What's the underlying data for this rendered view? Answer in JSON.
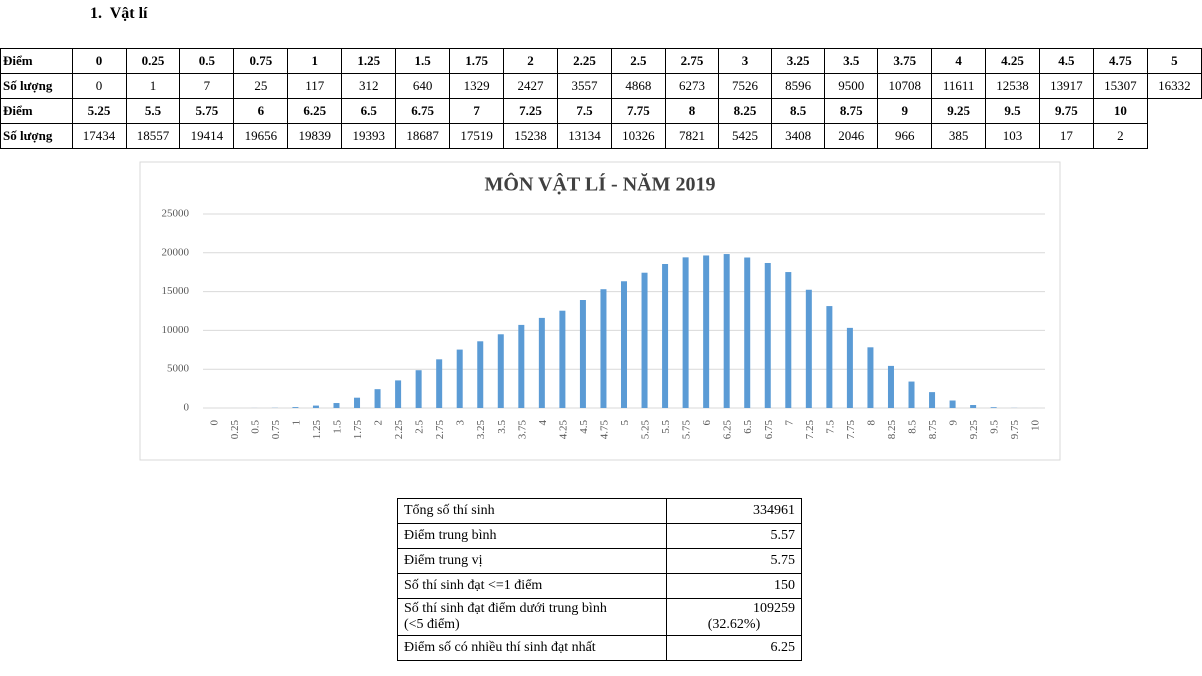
{
  "heading": "1.  Vật lí",
  "score_table": {
    "row_labels": [
      "Điểm",
      "Số lượng"
    ]
  },
  "chart_data": {
    "type": "bar",
    "title": "MÔN VẬT LÍ - NĂM 2019",
    "categories": [
      "0",
      "0.25",
      "0.5",
      "0.75",
      "1",
      "1.25",
      "1.5",
      "1.75",
      "2",
      "2.25",
      "2.5",
      "2.75",
      "3",
      "3.25",
      "3.5",
      "3.75",
      "4",
      "4.25",
      "4.5",
      "4.75",
      "5",
      "5.25",
      "5.5",
      "5.75",
      "6",
      "6.25",
      "6.5",
      "6.75",
      "7",
      "7.25",
      "7.5",
      "7.75",
      "8",
      "8.25",
      "8.5",
      "8.75",
      "9",
      "9.25",
      "9.5",
      "9.75",
      "10"
    ],
    "values": [
      0,
      1,
      7,
      25,
      117,
      312,
      640,
      1329,
      2427,
      3557,
      4868,
      6273,
      7526,
      8596,
      9500,
      10708,
      11611,
      12538,
      13917,
      15307,
      16332,
      17434,
      18557,
      19414,
      19656,
      19839,
      19393,
      18687,
      17519,
      15238,
      13134,
      10326,
      7821,
      5425,
      3408,
      2046,
      966,
      385,
      103,
      17,
      2
    ],
    "color": "#5b9bd5",
    "ylim": [
      0,
      25000
    ],
    "yticks": [
      0,
      5000,
      10000,
      15000,
      20000,
      25000
    ],
    "grid": true
  },
  "summary_table": {
    "rows": [
      {
        "label": [
          "Tổng số thí sinh"
        ],
        "value": [
          "334961"
        ]
      },
      {
        "label": [
          "Điểm trung bình"
        ],
        "value": [
          "5.57"
        ]
      },
      {
        "label": [
          "Điểm trung vị"
        ],
        "value": [
          "5.75"
        ]
      },
      {
        "label": [
          "Số thí sinh đạt <=1 điểm"
        ],
        "value": [
          "150"
        ]
      },
      {
        "label": [
          "Số thí sinh đạt điểm  dưới trung bình",
          "(<5 điểm)"
        ],
        "value": [
          "109259",
          "(32.62%)"
        ]
      },
      {
        "label": [
          "Điểm số có nhiều thí sinh đạt nhất"
        ],
        "value": [
          "6.25"
        ]
      }
    ]
  }
}
